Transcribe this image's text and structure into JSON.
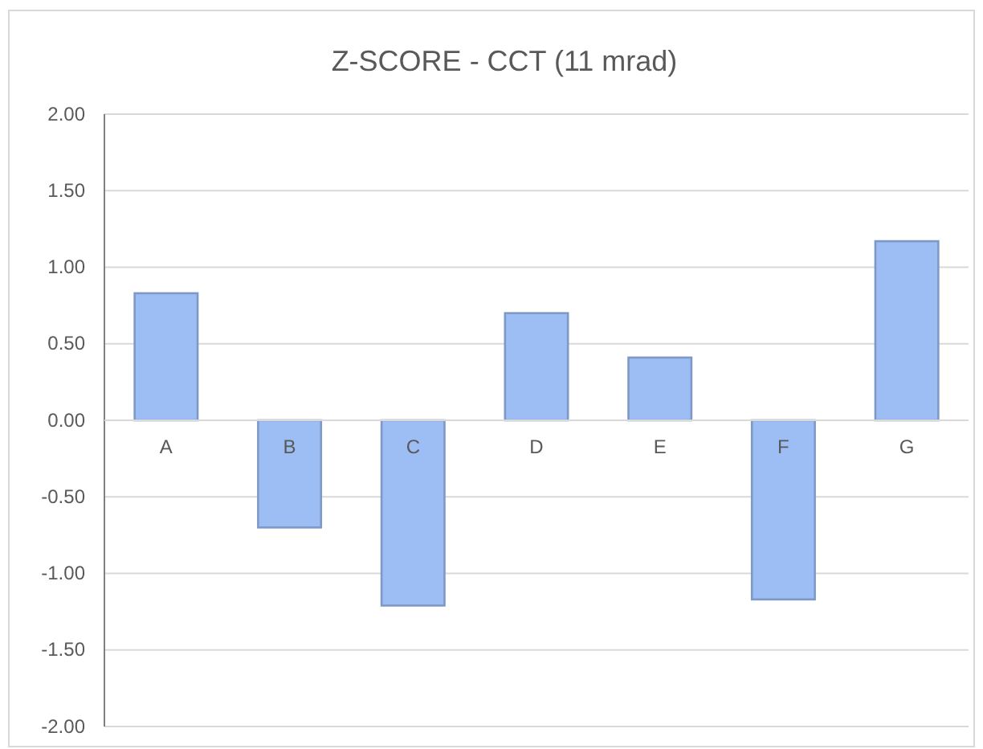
{
  "chart_data": {
    "type": "bar",
    "title": "Z-SCORE  - CCT  (11 mrad)",
    "categories": [
      "A",
      "B",
      "C",
      "D",
      "E",
      "F",
      "G"
    ],
    "values": [
      0.83,
      -0.7,
      -1.21,
      0.7,
      0.41,
      -1.17,
      1.17
    ],
    "color": "#9dbdf5",
    "ylim": [
      -2,
      2
    ],
    "yticks": [
      {
        "value": -2,
        "label": "-2.00"
      },
      {
        "value": -1.5,
        "label": "-1.50"
      },
      {
        "value": -1,
        "label": "-1.00"
      },
      {
        "value": -0.5,
        "label": "-0.50"
      },
      {
        "value": 0,
        "label": "0.00"
      },
      {
        "value": 0.5,
        "label": "0.50"
      },
      {
        "value": 1,
        "label": "1.00"
      },
      {
        "value": 1.5,
        "label": "1.50"
      },
      {
        "value": 2,
        "label": "2.00"
      }
    ],
    "grid": "y"
  }
}
